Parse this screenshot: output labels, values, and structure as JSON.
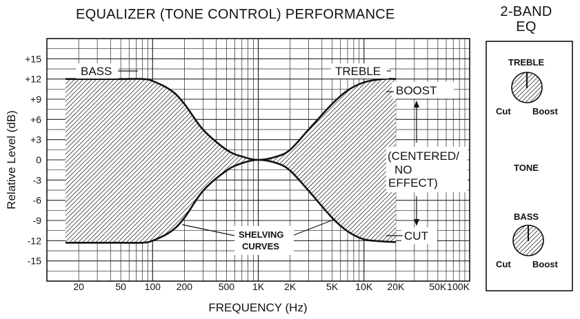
{
  "chart_data": {
    "type": "area",
    "title": "EQUALIZER (TONE CONTROL) PERFORMANCE",
    "xlabel": "FREQUENCY (Hz)",
    "ylabel": "Relative Level (dB)",
    "x_scale": "log",
    "xlim": [
      10,
      100000
    ],
    "ylim": [
      -18,
      18
    ],
    "x_ticks": [
      {
        "value": 20,
        "label": "20"
      },
      {
        "value": 50,
        "label": "50"
      },
      {
        "value": 100,
        "label": "100"
      },
      {
        "value": 200,
        "label": "200"
      },
      {
        "value": 500,
        "label": "500"
      },
      {
        "value": 1000,
        "label": "1K"
      },
      {
        "value": 2000,
        "label": "2K"
      },
      {
        "value": 5000,
        "label": "5K"
      },
      {
        "value": 10000,
        "label": "10K"
      },
      {
        "value": 20000,
        "label": "20K"
      },
      {
        "value": 50000,
        "label": "50K"
      },
      {
        "value": 100000,
        "label": "100K"
      }
    ],
    "y_ticks": [
      {
        "value": 15,
        "label": "+15"
      },
      {
        "value": 12,
        "label": "+12"
      },
      {
        "value": 9,
        "label": "+9"
      },
      {
        "value": 6,
        "label": "+6"
      },
      {
        "value": 3,
        "label": "+3"
      },
      {
        "value": 0,
        "label": "0"
      },
      {
        "value": -3,
        "label": "-3"
      },
      {
        "value": -6,
        "label": "-6"
      },
      {
        "value": -9,
        "label": "-9"
      },
      {
        "value": -12,
        "label": "-12"
      },
      {
        "value": -15,
        "label": "-15"
      }
    ],
    "grid": true,
    "series": [
      {
        "x": [
          15,
          20,
          50,
          80,
          100,
          150,
          200,
          300,
          500,
          700,
          1000,
          1500,
          2000,
          3000,
          5000,
          7000,
          10000,
          15000,
          20000
        ],
        "values": [
          12,
          12,
          12,
          12,
          11.7,
          10.3,
          8.3,
          4.5,
          1.5,
          0.5,
          0,
          0.5,
          1.5,
          4.5,
          8.3,
          10.3,
          11.5,
          12,
          12
        ]
      },
      {
        "x": [
          15,
          20,
          50,
          80,
          100,
          150,
          200,
          300,
          500,
          700,
          1000,
          1500,
          2000,
          3000,
          5000,
          7000,
          10000,
          15000,
          20000
        ],
        "values": [
          -12.3,
          -12.3,
          -12.3,
          -12.3,
          -12,
          -10.6,
          -8.6,
          -4.6,
          -1.6,
          -0.5,
          0,
          -0.5,
          -1.6,
          -4.6,
          -8.6,
          -10.6,
          -11.8,
          -12.1,
          -12.2
        ]
      }
    ],
    "annotations": {
      "bass": "BASS",
      "treble": "TREBLE",
      "boost": "BOOST",
      "centered_line1": "(CENTERED/",
      "centered_line2": "NO",
      "centered_line3": "EFFECT)",
      "cut": "CUT",
      "shelving_line1": "SHELVING",
      "shelving_line2": "CURVES"
    }
  },
  "panel": {
    "title_line1": "2-BAND",
    "title_line2": "EQ",
    "treble_label": "TREBLE",
    "tone_label": "TONE",
    "bass_label": "BASS",
    "cut_label": "Cut",
    "boost_label": "Boost"
  }
}
